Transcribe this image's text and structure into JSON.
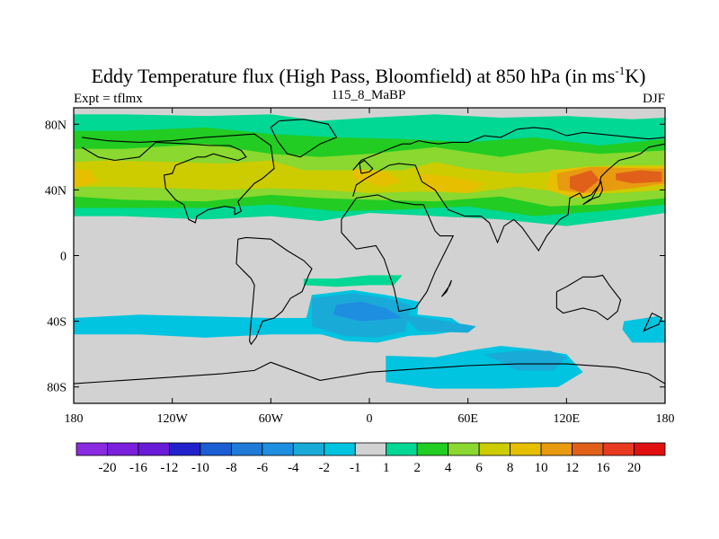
{
  "chart_data": {
    "type": "heatmap",
    "title_main": "Eddy Temperature flux (High Pass, Bloomfield) at 850 hPa (in ms",
    "title_sup": "-1",
    "title_end": "K)",
    "left_label": "Expt = tflmx",
    "center_label": "115_8_MaBP",
    "right_label": "DJF",
    "xlim": [
      -180,
      180
    ],
    "ylim": [
      -90,
      90
    ],
    "x_ticks": [
      {
        "value": -180,
        "label": "180"
      },
      {
        "value": -120,
        "label": "120W"
      },
      {
        "value": -60,
        "label": "60W"
      },
      {
        "value": 0,
        "label": "0"
      },
      {
        "value": 60,
        "label": "60E"
      },
      {
        "value": 120,
        "label": "120E"
      },
      {
        "value": 180,
        "label": "180"
      }
    ],
    "y_ticks": [
      {
        "value": 80,
        "label": "80N"
      },
      {
        "value": 40,
        "label": "40N"
      },
      {
        "value": 0,
        "label": "0"
      },
      {
        "value": -40,
        "label": "40S"
      },
      {
        "value": -80,
        "label": "80S"
      }
    ],
    "colorbar": {
      "labels": [
        "-20",
        "-16",
        "-12",
        "-10",
        "-8",
        "-6",
        "-4",
        "-2",
        "-1",
        "1",
        "2",
        "4",
        "6",
        "8",
        "10",
        "12",
        "16",
        "20"
      ],
      "colors": [
        "#8a2be2",
        "#7a1fdc",
        "#6a1bd8",
        "#2222cc",
        "#1b5ed4",
        "#1f7ad8",
        "#1e8ee0",
        "#1aaad8",
        "#00c4e0",
        "#d2d2d2",
        "#00d894",
        "#22cc22",
        "#8ad830",
        "#cccc00",
        "#e6c000",
        "#e89a10",
        "#e0601a",
        "#e83a20",
        "#e01010"
      ]
    },
    "background_color": "#d2d2d2",
    "regions": [
      {
        "level": 2,
        "color": "#00d894",
        "lon": [
          -180,
          -150,
          -100,
          -60,
          -30,
          0,
          40,
          80,
          120,
          160,
          180,
          180,
          160,
          120,
          80,
          40,
          0,
          -30,
          -60,
          -100,
          -150,
          -180
        ],
        "lat": [
          86,
          86,
          85,
          86,
          82,
          84,
          86,
          84,
          85,
          83,
          84,
          26,
          23,
          18,
          22,
          24,
          26,
          21,
          24,
          22,
          24,
          24
        ]
      },
      {
        "level": 4,
        "color": "#22cc22",
        "lon": [
          -180,
          -150,
          -100,
          -60,
          -20,
          20,
          60,
          100,
          140,
          180,
          180,
          140,
          100,
          60,
          20,
          -20,
          -60,
          -100,
          -150,
          -180
        ],
        "lat": [
          76,
          76,
          78,
          74,
          72,
          71,
          69,
          72,
          67,
          71,
          31,
          27,
          24,
          30,
          28,
          27,
          31,
          29,
          29,
          29
        ]
      },
      {
        "level": 6,
        "color": "#8ad830",
        "lon": [
          -180,
          -150,
          -100,
          -60,
          -30,
          0,
          40,
          80,
          110,
          140,
          180,
          180,
          140,
          110,
          80,
          40,
          0,
          -30,
          -60,
          -100,
          -150,
          -180
        ],
        "lat": [
          65,
          65,
          68,
          62,
          60,
          62,
          66,
          60,
          65,
          62,
          64,
          35,
          31,
          30,
          36,
          33,
          34,
          35,
          37,
          33,
          34,
          36
        ]
      },
      {
        "level": 8,
        "color": "#cccc00",
        "lon": [
          -180,
          -160,
          -120,
          -90,
          -60,
          -40,
          -10,
          20,
          40,
          60,
          90,
          110,
          130,
          150,
          175,
          180,
          180,
          150,
          120,
          90,
          60,
          30,
          0,
          -30,
          -60,
          -90,
          -120,
          -160,
          -180
        ],
        "lat": [
          57,
          58,
          57,
          56,
          58,
          52,
          52,
          52,
          57,
          53,
          50,
          51,
          54,
          55,
          55,
          55,
          40,
          38,
          38,
          42,
          38,
          39,
          38,
          40,
          41,
          40,
          41,
          42,
          42
        ]
      },
      {
        "level": 10,
        "color": "#e6c000",
        "lon": [
          -180,
          -170,
          -165,
          -180
        ],
        "lat": [
          53,
          52,
          45,
          41
        ]
      },
      {
        "level": 10,
        "color": "#e6c000",
        "lon": [
          -10,
          10,
          20,
          8,
          -10
        ],
        "lat": [
          53,
          51,
          45,
          42,
          47
        ]
      },
      {
        "level": 10,
        "color": "#e6c000",
        "lon": [
          30,
          50,
          70,
          60,
          35
        ],
        "lat": [
          50,
          48,
          44,
          38,
          40
        ]
      },
      {
        "level": 10,
        "color": "#e6c000",
        "lon": [
          110,
          130,
          160,
          180,
          180,
          150,
          125,
          108
        ],
        "lat": [
          52,
          54,
          54,
          54,
          43,
          40,
          35,
          40
        ]
      },
      {
        "level": 12,
        "color": "#e89a10",
        "lon": [
          114,
          135,
          170,
          180,
          180,
          160,
          130,
          115
        ],
        "lat": [
          50,
          54,
          53,
          53,
          44,
          41,
          38,
          40
        ]
      },
      {
        "level": 16,
        "color": "#e0601a",
        "lon": [
          122,
          135,
          140,
          130,
          122
        ],
        "lat": [
          48,
          52,
          46,
          38,
          41
        ]
      },
      {
        "level": 16,
        "color": "#e0601a",
        "lon": [
          150,
          165,
          178,
          178,
          160,
          150
        ],
        "lat": [
          50,
          52,
          51,
          45,
          44,
          46
        ]
      },
      {
        "level": -1,
        "color": "#00c4e0",
        "lon": [
          -180,
          -140,
          -100,
          -60,
          -40,
          -20,
          -10,
          20,
          50,
          60,
          40,
          20,
          0,
          -30,
          -60,
          -100,
          -140,
          -180
        ],
        "lat": [
          -38,
          -36,
          -37,
          -38,
          -38,
          -36,
          -34,
          -35,
          -38,
          -45,
          -48,
          -49,
          -50,
          -48,
          -48,
          -50,
          -48,
          -48
        ]
      },
      {
        "level": -1,
        "color": "#00c4e0",
        "lon": [
          -35,
          -10,
          10,
          30,
          28,
          5,
          -15,
          -40
        ],
        "lat": [
          -24,
          -21,
          -24,
          -28,
          -48,
          -53,
          -52,
          -45
        ]
      },
      {
        "level": -1,
        "color": "#00c4e0",
        "lon": [
          155,
          175,
          180,
          180,
          160,
          154
        ],
        "lat": [
          -40,
          -37,
          -40,
          -53,
          -53,
          -45
        ]
      },
      {
        "level": -1,
        "color": "#00c4e0",
        "lon": [
          10,
          40,
          60,
          80,
          100,
          120,
          130,
          115,
          80,
          40,
          10
        ],
        "lat": [
          -61,
          -62,
          -58,
          -55,
          -57,
          -60,
          -71,
          -80,
          -81,
          -81,
          -77
        ]
      },
      {
        "level": -2,
        "color": "#1aaad8",
        "lon": [
          -35,
          -10,
          10,
          25,
          22,
          5,
          -15,
          -35
        ],
        "lat": [
          -26,
          -23,
          -26,
          -30,
          -46,
          -50,
          -49,
          -43
        ]
      },
      {
        "level": -2,
        "color": "#1aaad8",
        "lon": [
          20,
          40,
          65,
          60,
          30
        ],
        "lat": [
          -36,
          -39,
          -43,
          -47,
          -46
        ]
      },
      {
        "level": -2,
        "color": "#1aaad8",
        "lon": [
          70,
          90,
          110,
          120,
          112,
          90
        ],
        "lat": [
          -60,
          -58,
          -58,
          -62,
          -70,
          -70
        ]
      },
      {
        "level": -4,
        "color": "#1e8ee0",
        "lon": [
          -20,
          -5,
          10,
          20,
          -5,
          -22
        ],
        "lat": [
          -30,
          -28,
          -32,
          -38,
          -40,
          -36
        ]
      },
      {
        "level": 2,
        "color": "#00d894",
        "lon": [
          -40,
          -20,
          0,
          10,
          0,
          -20,
          -40
        ],
        "lat": [
          -14,
          -14,
          -12,
          -14,
          -18,
          -19,
          -18
        ]
      },
      {
        "level": 2,
        "color": "#00d894",
        "lon": [
          0,
          20,
          15,
          0
        ],
        "lat": [
          -12,
          -12,
          -18,
          -18
        ]
      }
    ],
    "coastlines": [
      {
        "name": "north-america",
        "lon": [
          -175,
          -160,
          -140,
          -120,
          -100,
          -85,
          -70,
          -60,
          -58,
          -65,
          -70,
          -80,
          -78,
          -82,
          -82,
          -88,
          -98,
          -105,
          -106,
          -110,
          -113,
          -118,
          -124,
          -125,
          -120,
          -118,
          -105,
          -100,
          -95,
          -88,
          -80,
          -75,
          -78,
          -85,
          -97,
          -110,
          -130,
          -140,
          -155,
          -165,
          -175
        ],
        "lat": [
          72,
          70,
          69,
          70,
          72,
          73,
          74,
          67,
          53,
          47,
          44,
          33,
          27,
          25,
          29,
          30,
          28,
          24,
          20,
          22,
          31,
          34,
          41,
          49,
          50,
          55,
          60,
          60,
          62,
          60,
          58,
          60,
          64,
          67,
          67,
          68,
          69,
          60,
          58,
          60,
          66
        ]
      },
      {
        "name": "greenland",
        "lon": [
          -55,
          -40,
          -25,
          -20,
          -30,
          -42,
          -50,
          -56,
          -60,
          -55
        ],
        "lat": [
          82,
          83,
          80,
          72,
          68,
          60,
          62,
          70,
          78,
          82
        ]
      },
      {
        "name": "south-america",
        "lon": [
          -80,
          -75,
          -60,
          -50,
          -40,
          -35,
          -37,
          -41,
          -48,
          -53,
          -58,
          -65,
          -69,
          -72,
          -73,
          -72,
          -71,
          -70,
          -70,
          -72,
          -76,
          -81,
          -80
        ],
        "lat": [
          10,
          11,
          10,
          3,
          -3,
          -8,
          -12,
          -22,
          -26,
          -34,
          -38,
          -40,
          -50,
          -54,
          -52,
          -40,
          -30,
          -18,
          -18,
          -14,
          -10,
          -5,
          10
        ]
      },
      {
        "name": "eurasia",
        "lon": [
          -10,
          -8,
          -2,
          5,
          12,
          18,
          28,
          32,
          40,
          48,
          58,
          68,
          73,
          78,
          82,
          88,
          93,
          98,
          103,
          108,
          116,
          121,
          122,
          128,
          130,
          135,
          140,
          141,
          145,
          152,
          160,
          165,
          170,
          180,
          180,
          170,
          160,
          150,
          140,
          130,
          120,
          110,
          100,
          90,
          80,
          70,
          60,
          50,
          42,
          35,
          30,
          25,
          20,
          12,
          5,
          0,
          -5,
          -10
        ],
        "lat": [
          36,
          43,
          47,
          51,
          55,
          56,
          55,
          45,
          40,
          28,
          24,
          24,
          20,
          8,
          18,
          22,
          17,
          10,
          3,
          12,
          22,
          25,
          35,
          38,
          35,
          37,
          43,
          48,
          52,
          58,
          60,
          62,
          66,
          68,
          72,
          71,
          72,
          73,
          74,
          75,
          73,
          77,
          78,
          77,
          72,
          73,
          69,
          69,
          68,
          69,
          70,
          68,
          68,
          65,
          62,
          60,
          58,
          52
        ]
      },
      {
        "name": "africa",
        "lon": [
          -17,
          -8,
          5,
          15,
          28,
          33,
          40,
          43,
          51,
          44,
          40,
          35,
          28,
          18,
          15,
          9,
          4,
          -8,
          -17,
          -17
        ],
        "lat": [
          22,
          35,
          37,
          33,
          31,
          31,
          15,
          12,
          12,
          -2,
          -10,
          -22,
          -32,
          -34,
          -20,
          -2,
          6,
          4,
          14,
          22
        ]
      },
      {
        "name": "australia",
        "lon": [
          114,
          120,
          130,
          137,
          142,
          146,
          153,
          151,
          145,
          138,
          130,
          118,
          114,
          114
        ],
        "lat": [
          -22,
          -19,
          -13,
          -13,
          -12,
          -18,
          -27,
          -34,
          -39,
          -34,
          -32,
          -35,
          -32,
          -22
        ]
      },
      {
        "name": "antarctica",
        "lon": [
          -60,
          -30,
          0,
          30,
          60,
          90,
          120,
          150,
          170,
          180,
          180,
          -180,
          -180,
          -150,
          -120,
          -90,
          -70,
          -60
        ],
        "lat": [
          -65,
          -76,
          -71,
          -69,
          -67,
          -66,
          -66,
          -68,
          -72,
          -78,
          -90,
          -90,
          -78,
          -76,
          -74,
          -72,
          -70,
          -65
        ]
      },
      {
        "name": "uk",
        "lon": [
          -5,
          0,
          2,
          -3,
          -6,
          -5
        ],
        "lat": [
          50,
          51,
          53,
          58,
          56,
          50
        ]
      },
      {
        "name": "japan",
        "lon": [
          130,
          134,
          140,
          142,
          141,
          135,
          130
        ],
        "lat": [
          31,
          34,
          36,
          40,
          45,
          34,
          31
        ]
      },
      {
        "name": "madagascar",
        "lon": [
          44,
          49,
          50,
          47,
          44,
          44
        ],
        "lat": [
          -25,
          -18,
          -15,
          -22,
          -25,
          -25
        ]
      },
      {
        "name": "new-zealand",
        "lon": [
          172,
          178,
          176,
          171,
          167,
          172
        ],
        "lat": [
          -35,
          -38,
          -42,
          -44,
          -46,
          -35
        ]
      }
    ]
  }
}
